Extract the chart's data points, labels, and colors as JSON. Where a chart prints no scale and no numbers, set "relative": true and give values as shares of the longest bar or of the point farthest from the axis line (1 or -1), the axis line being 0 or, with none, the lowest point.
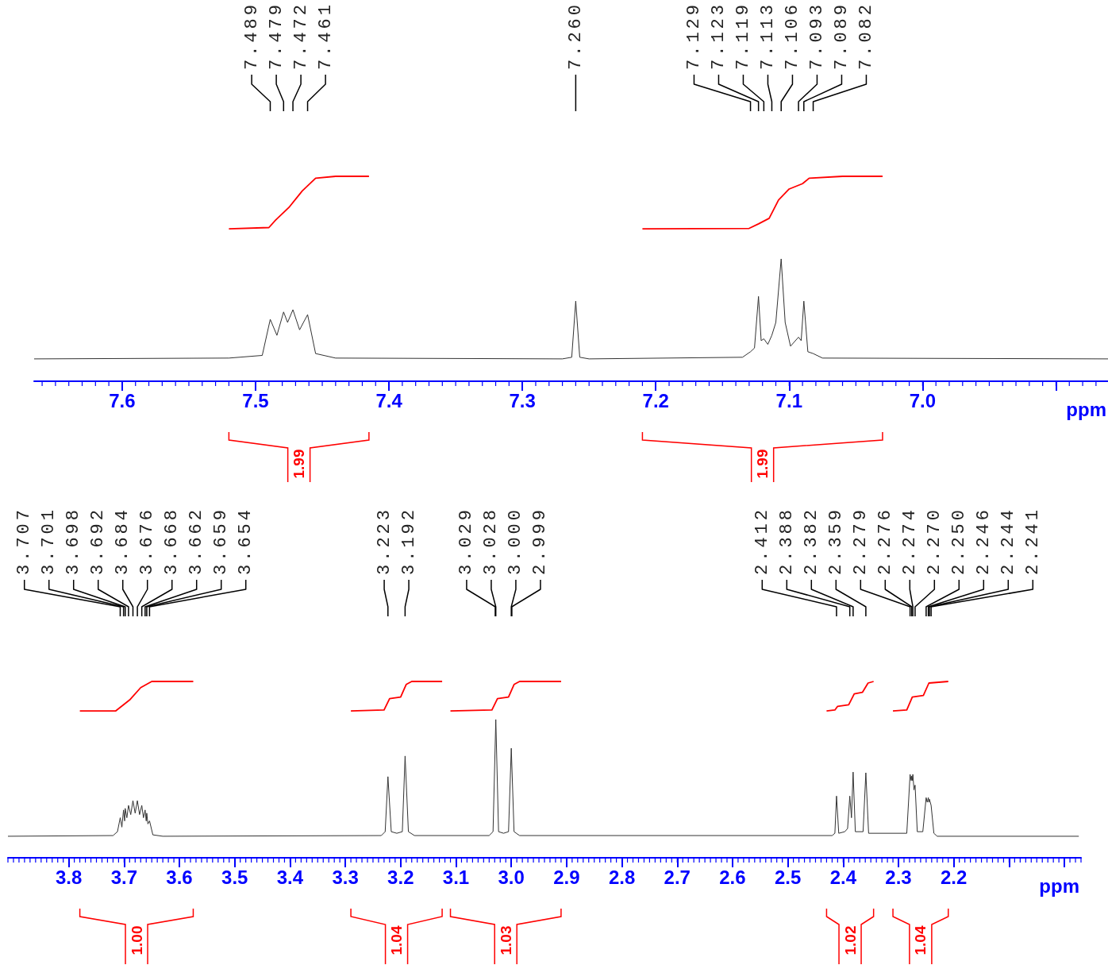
{
  "chart_data": [
    {
      "type": "line",
      "relative": true,
      "marker": "none",
      "xlabel": "ppm",
      "xlim": [
        7.666,
        6.861
      ],
      "xticks": [
        7.6,
        7.5,
        7.4,
        7.3,
        7.2,
        7.1,
        {
          "value": 7,
          "label": "7.0"
        },
        {
          "value": 6.9,
          "label": null
        }
      ],
      "series": [
        {
          "color": "#333333",
          "x": [
            7.666,
            7.52,
            7.495,
            7.489,
            7.484,
            7.479,
            7.476,
            7.472,
            7.467,
            7.461,
            7.455,
            7.44,
            7.27,
            7.263,
            7.26,
            7.257,
            7.25,
            7.135,
            7.129,
            7.126,
            7.123,
            7.121,
            7.119,
            7.116,
            7.113,
            7.11,
            7.106,
            7.103,
            7.099,
            7.093,
            7.091,
            7.089,
            7.086,
            7.082,
            7.075,
            6.861
          ],
          "values": [
            0.109,
            0.113,
            0.126,
            0.302,
            0.224,
            0.338,
            0.287,
            0.349,
            0.251,
            0.325,
            0.135,
            0.113,
            0.109,
            0.117,
            0.391,
            0.117,
            0.109,
            0.117,
            0.144,
            0.162,
            0.414,
            0.198,
            0.207,
            0.18,
            0.224,
            0.287,
            0.597,
            0.287,
            0.171,
            0.215,
            0.198,
            0.391,
            0.144,
            0.135,
            0.113,
            0.109
          ]
        },
        {
          "color": "#ff0000",
          "x": [
            7.52,
            7.49,
            7.485,
            7.475,
            7.465,
            7.455,
            7.44,
            7.415
          ],
          "values": [
            0.744,
            0.75,
            0.786,
            0.848,
            0.929,
            0.991,
            1.0,
            1.0
          ]
        },
        {
          "color": "#ff0000",
          "x": [
            7.21,
            7.13,
            7.123,
            7.115,
            7.108,
            7.1,
            7.09,
            7.085,
            7.06,
            7.03
          ],
          "values": [
            0.744,
            0.746,
            0.768,
            0.795,
            0.884,
            0.938,
            0.964,
            0.991,
            1.0,
            1.0
          ]
        }
      ],
      "annotations": [
        {
          "text": "7.489",
          "x": 7.489
        },
        {
          "text": "7.479",
          "x": 7.479
        },
        {
          "text": "7.472",
          "x": 7.472
        },
        {
          "text": "7.461",
          "x": 7.461
        },
        {
          "text": "7.260",
          "x": 7.26
        },
        {
          "text": "7.129",
          "x": 7.129
        },
        {
          "text": "7.123",
          "x": 7.123
        },
        {
          "text": "7.119",
          "x": 7.119
        },
        {
          "text": "7.113",
          "x": 7.113
        },
        {
          "text": "7.106",
          "x": 7.106
        },
        {
          "text": "7.093",
          "x": 7.093
        },
        {
          "text": "7.089",
          "x": 7.089
        },
        {
          "text": "7.082",
          "x": 7.082
        },
        "1.99",
        "1.99"
      ]
    },
    {
      "type": "line",
      "relative": true,
      "marker": "none",
      "xlabel": "ppm",
      "xlim": [
        3.91,
        1.97
      ],
      "xticks": [
        3.8,
        3.7,
        3.6,
        3.5,
        3.4,
        3.3,
        3.2,
        3.1,
        {
          "value": 3,
          "label": "3.0"
        },
        2.9,
        2.8,
        2.7,
        2.6,
        2.5,
        2.4,
        2.3,
        2.2,
        {
          "value": 2.1,
          "label": null
        },
        {
          "value": 2,
          "label": null
        }
      ],
      "series": [
        {
          "color": "#333333",
          "x": [
            3.91,
            3.72,
            3.712,
            3.707,
            3.704,
            3.701,
            3.699,
            3.698,
            3.695,
            3.692,
            3.688,
            3.684,
            3.68,
            3.676,
            3.672,
            3.668,
            3.665,
            3.662,
            3.66,
            3.659,
            3.657,
            3.654,
            3.648,
            3.63,
            3.235,
            3.228,
            3.223,
            3.217,
            3.207,
            3.197,
            3.192,
            3.186,
            3.175,
            3.04,
            3.033,
            3.028,
            3.023,
            3.014,
            3.005,
            3.0,
            2.995,
            2.985,
            2.42,
            2.415,
            2.412,
            2.408,
            2.397,
            2.392,
            2.388,
            2.385,
            2.382,
            2.378,
            2.364,
            2.359,
            2.354,
            2.285,
            2.279,
            2.277,
            2.276,
            2.275,
            2.274,
            2.272,
            2.27,
            2.266,
            2.256,
            2.25,
            2.248,
            2.246,
            2.245,
            2.244,
            2.241,
            2.236,
            2.23,
            1.974
          ],
          "values": [
            0.122,
            0.126,
            0.148,
            0.227,
            0.174,
            0.271,
            0.209,
            0.28,
            0.227,
            0.297,
            0.245,
            0.324,
            0.253,
            0.324,
            0.245,
            0.297,
            0.227,
            0.271,
            0.209,
            0.253,
            0.192,
            0.209,
            0.13,
            0.122,
            0.126,
            0.148,
            0.46,
            0.148,
            0.139,
            0.148,
            0.577,
            0.148,
            0.126,
            0.126,
            0.148,
            0.784,
            0.148,
            0.139,
            0.148,
            0.621,
            0.148,
            0.126,
            0.126,
            0.139,
            0.35,
            0.139,
            0.148,
            0.166,
            0.35,
            0.227,
            0.486,
            0.148,
            0.148,
            0.482,
            0.139,
            0.139,
            0.473,
            0.438,
            0.464,
            0.438,
            0.473,
            0.385,
            0.412,
            0.148,
            0.148,
            0.341,
            0.315,
            0.341,
            0.315,
            0.332,
            0.297,
            0.139,
            0.122,
            0.122
          ]
        },
        {
          "color": "#ff0000",
          "x": [
            3.78,
            3.715,
            3.69,
            3.67,
            3.65,
            3.575
          ],
          "values": [
            0.833,
            0.833,
            0.895,
            0.965,
            1.0,
            1.0
          ]
        },
        {
          "color": "#ff0000",
          "x": [
            3.29,
            3.23,
            3.22,
            3.2,
            3.19,
            3.18,
            3.125
          ],
          "values": [
            0.833,
            0.838,
            0.903,
            0.912,
            0.983,
            1.0,
            1.0
          ]
        },
        {
          "color": "#ff0000",
          "x": [
            3.11,
            3.035,
            3.025,
            3.005,
            2.995,
            2.985,
            2.91
          ],
          "values": [
            0.833,
            0.838,
            0.903,
            0.912,
            0.983,
            1.0,
            1.0
          ]
        },
        {
          "color": "#ff0000",
          "x": [
            2.43,
            2.415,
            2.41,
            2.39,
            2.38,
            2.365,
            2.355,
            2.345
          ],
          "values": [
            0.833,
            0.838,
            0.859,
            0.868,
            0.93,
            0.939,
            0.991,
            1.0
          ]
        },
        {
          "color": "#ff0000",
          "x": [
            2.31,
            2.285,
            2.275,
            2.255,
            2.245,
            2.21
          ],
          "values": [
            0.833,
            0.838,
            0.912,
            0.921,
            0.991,
            1.0
          ]
        }
      ],
      "annotations": [
        {
          "text": "3.707",
          "x": 3.707
        },
        {
          "text": "3.701",
          "x": 3.701
        },
        {
          "text": "3.698",
          "x": 3.698
        },
        {
          "text": "3.692",
          "x": 3.692
        },
        {
          "text": "3.684",
          "x": 3.684
        },
        {
          "text": "3.676",
          "x": 3.676
        },
        {
          "text": "3.668",
          "x": 3.668
        },
        {
          "text": "3.662",
          "x": 3.662
        },
        {
          "text": "3.659",
          "x": 3.659
        },
        {
          "text": "3.654",
          "x": 3.654
        },
        {
          "text": "3.223",
          "x": 3.223
        },
        {
          "text": "3.192",
          "x": 3.192
        },
        {
          "text": "3.029",
          "x": 3.029
        },
        {
          "text": "3.028",
          "x": 3.028
        },
        {
          "text": "3.000",
          "x": 3.0
        },
        {
          "text": "2.999",
          "x": 2.999
        },
        {
          "text": "2.412",
          "x": 2.412
        },
        {
          "text": "2.388",
          "x": 2.388
        },
        {
          "text": "2.382",
          "x": 2.382
        },
        {
          "text": "2.359",
          "x": 2.359
        },
        {
          "text": "2.279",
          "x": 2.279
        },
        {
          "text": "2.276",
          "x": 2.276
        },
        {
          "text": "2.274",
          "x": 2.274
        },
        {
          "text": "2.270",
          "x": 2.27
        },
        {
          "text": "2.250",
          "x": 2.25
        },
        {
          "text": "2.246",
          "x": 2.246
        },
        {
          "text": "2.244",
          "x": 2.244
        },
        {
          "text": "2.241",
          "x": 2.241
        },
        "1.00",
        "1.04",
        "1.03",
        "1.02",
        "1.04"
      ]
    }
  ]
}
